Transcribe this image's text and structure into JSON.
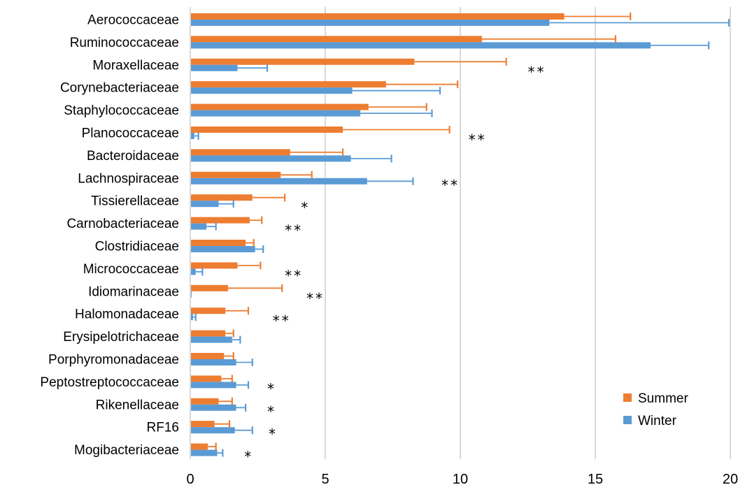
{
  "chart_data": {
    "type": "bar",
    "orientation": "horizontal",
    "title": "",
    "xlabel": "",
    "ylabel": "",
    "xlim": [
      0,
      20
    ],
    "xticks": [
      0,
      5,
      10,
      15,
      20
    ],
    "grid": "vertical",
    "legend_position": "bottom-right",
    "categories": [
      "Aerococcaceae",
      "Ruminococcaceae",
      "Moraxellaceae",
      "Corynebacteriaceae",
      "Staphylococcaceae",
      "Planococcaceae",
      "Bacteroidaceae",
      "Lachnospiraceae",
      "Tissierellaceae",
      "Carnobacteriaceae",
      "Clostridiaceae",
      "Micrococcaceae",
      "Idiomarinaceae",
      "Halomonadaceae",
      "Erysipelotrichaceae",
      "Porphyromonadaceae",
      "Peptostreptococcaceae",
      "Rikenellaceae",
      "RF16",
      "Mogibacteriaceae"
    ],
    "series": [
      {
        "name": "Summer",
        "color": "#ed7d31",
        "values": [
          13.85,
          10.8,
          8.3,
          7.25,
          6.6,
          5.65,
          3.7,
          3.35,
          2.3,
          2.2,
          2.05,
          1.75,
          1.4,
          1.3,
          1.3,
          1.25,
          1.15,
          1.05,
          0.9,
          0.65
        ],
        "error_upper": [
          16.3,
          15.75,
          11.7,
          9.9,
          8.75,
          9.6,
          5.65,
          4.5,
          3.5,
          2.65,
          2.35,
          2.6,
          3.4,
          2.15,
          1.6,
          1.6,
          1.55,
          1.55,
          1.45,
          0.95
        ]
      },
      {
        "name": "Winter",
        "color": "#5b9bd5",
        "values": [
          13.3,
          17.05,
          1.75,
          6.0,
          6.3,
          0.15,
          5.95,
          6.55,
          1.05,
          0.6,
          2.4,
          0.2,
          0.05,
          0.1,
          1.55,
          1.7,
          1.7,
          1.7,
          1.65,
          1.0
        ],
        "error_upper": [
          19.95,
          19.2,
          2.85,
          9.25,
          8.95,
          0.3,
          7.45,
          8.25,
          1.6,
          0.95,
          2.7,
          0.45,
          0.05,
          0.2,
          1.85,
          2.3,
          2.15,
          2.05,
          2.3,
          1.2
        ]
      }
    ],
    "significance": [
      "",
      "*",
      "**",
      "",
      "",
      "**",
      "",
      "**",
      "*",
      "**",
      "",
      "**",
      "**",
      "**",
      "",
      "",
      "*",
      "*",
      "*",
      "*"
    ],
    "significance_x": [
      null,
      20.6,
      12.5,
      null,
      null,
      10.3,
      null,
      9.3,
      4.1,
      3.5,
      null,
      3.5,
      4.3,
      3.05,
      null,
      null,
      2.85,
      2.85,
      2.9,
      2.0
    ]
  }
}
